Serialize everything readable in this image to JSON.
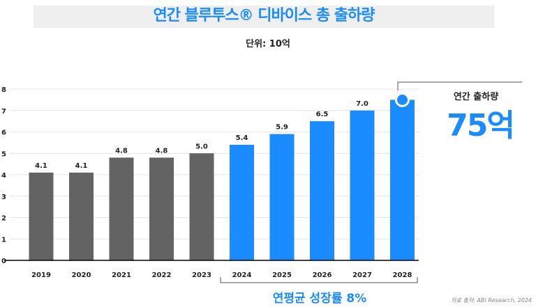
{
  "title": "연간 블루투스® 디바이스 총 출하량",
  "unit": "단위: 10억",
  "annotation": {
    "label": "연간 출하량",
    "value": "75억"
  },
  "growth_label": "연평균 성장률 8%",
  "source": "자료 출처: ABI Research, 2024",
  "colors": {
    "past": "#636363",
    "forecast": "#1a8cff",
    "accent": "#1a8cff"
  },
  "chart_data": {
    "type": "bar",
    "categories": [
      "2019",
      "2020",
      "2021",
      "2022",
      "2023",
      "2024",
      "2025",
      "2026",
      "2027",
      "2028"
    ],
    "values": [
      4.1,
      4.1,
      4.8,
      4.8,
      5.0,
      5.4,
      5.9,
      6.5,
      7.0,
      7.5
    ],
    "labels": [
      "4.1",
      "4.1",
      "4.8",
      "4.8",
      "5.0",
      "5.4",
      "5.9",
      "6.5",
      "7.0",
      ""
    ],
    "forecast_from_index": 5,
    "highlight_index": 9,
    "yticks": [
      "0",
      "1",
      "2",
      "3",
      "4",
      "5",
      "6",
      "7",
      "8"
    ],
    "ylim": [
      0,
      8
    ],
    "grid": true
  }
}
